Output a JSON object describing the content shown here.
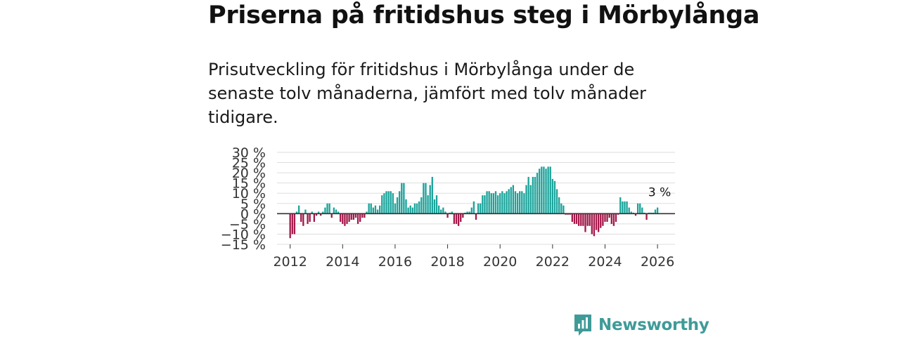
{
  "header": {
    "title": "Priserna på fritidshus steg i Mörbylånga",
    "subtitle": "Prisutveckling för fritidshus i Mörbylånga under de senaste tolv månaderna, jämfört med tolv månader tidigare."
  },
  "brand": {
    "name": "Newsworthy",
    "icon": "newsworthy-logo-icon",
    "color": "#3f9b98"
  },
  "colors": {
    "positive": "#1aa39a",
    "negative": "#a3184a",
    "grid": "#dddddd",
    "zero_line": "#333333"
  },
  "chart_data": {
    "type": "bar",
    "title": "Priserna på fritidshus steg i Mörbylånga",
    "subtitle": "Prisutveckling för fritidshus i Mörbylånga under de senaste tolv månaderna, jämfört med tolv månader tidigare.",
    "xlabel": "",
    "ylabel": "",
    "unit": "%",
    "grid": true,
    "legend": "none",
    "ylim": [
      -15,
      30
    ],
    "xlim": [
      "2011-07",
      "2026-09"
    ],
    "y_ticks": [
      "30 %",
      "25 %",
      "20 %",
      "15 %",
      "10 %",
      "5 %",
      "0 %",
      "−5 %",
      "−10 %",
      "−15 %"
    ],
    "y_tick_values": [
      30,
      25,
      20,
      15,
      10,
      5,
      0,
      -5,
      -10,
      -15
    ],
    "x_ticks": [
      "2012",
      "2014",
      "2016",
      "2018",
      "2020",
      "2022",
      "2024",
      "2026"
    ],
    "annotation": {
      "label": "3 %",
      "at": "2026-01"
    },
    "series": [
      {
        "values": [
          {
            "x": "2012-01",
            "y": -12
          },
          {
            "x": "2012-02",
            "y": -10
          },
          {
            "x": "2012-03",
            "y": -10
          },
          {
            "x": "2012-04",
            "y": 1
          },
          {
            "x": "2012-05",
            "y": 4
          },
          {
            "x": "2012-06",
            "y": -4
          },
          {
            "x": "2012-07",
            "y": -6
          },
          {
            "x": "2012-08",
            "y": 2
          },
          {
            "x": "2012-09",
            "y": -5
          },
          {
            "x": "2012-10",
            "y": -4
          },
          {
            "x": "2012-11",
            "y": 1
          },
          {
            "x": "2012-12",
            "y": -4
          },
          {
            "x": "2013-01",
            "y": -1
          },
          {
            "x": "2013-02",
            "y": 1
          },
          {
            "x": "2013-03",
            "y": -1
          },
          {
            "x": "2013-04",
            "y": 1
          },
          {
            "x": "2013-05",
            "y": 3
          },
          {
            "x": "2013-06",
            "y": 5
          },
          {
            "x": "2013-07",
            "y": 5
          },
          {
            "x": "2013-08",
            "y": -2
          },
          {
            "x": "2013-09",
            "y": 3
          },
          {
            "x": "2013-10",
            "y": 2
          },
          {
            "x": "2013-11",
            "y": 1
          },
          {
            "x": "2013-12",
            "y": -4
          },
          {
            "x": "2014-01",
            "y": -5
          },
          {
            "x": "2014-02",
            "y": -6
          },
          {
            "x": "2014-03",
            "y": -5
          },
          {
            "x": "2014-04",
            "y": -4
          },
          {
            "x": "2014-05",
            "y": -3
          },
          {
            "x": "2014-06",
            "y": -3
          },
          {
            "x": "2014-07",
            "y": -2
          },
          {
            "x": "2014-08",
            "y": -5
          },
          {
            "x": "2014-09",
            "y": -4
          },
          {
            "x": "2014-10",
            "y": -2
          },
          {
            "x": "2014-11",
            "y": -2
          },
          {
            "x": "2014-12",
            "y": 1
          },
          {
            "x": "2015-01",
            "y": 5
          },
          {
            "x": "2015-02",
            "y": 5
          },
          {
            "x": "2015-03",
            "y": 3
          },
          {
            "x": "2015-04",
            "y": 4
          },
          {
            "x": "2015-05",
            "y": 2
          },
          {
            "x": "2015-06",
            "y": 4
          },
          {
            "x": "2015-07",
            "y": 9
          },
          {
            "x": "2015-08",
            "y": 10
          },
          {
            "x": "2015-09",
            "y": 11
          },
          {
            "x": "2015-10",
            "y": 11
          },
          {
            "x": "2015-11",
            "y": 11
          },
          {
            "x": "2015-12",
            "y": 10
          },
          {
            "x": "2016-01",
            "y": 5
          },
          {
            "x": "2016-02",
            "y": 8
          },
          {
            "x": "2016-03",
            "y": 11
          },
          {
            "x": "2016-04",
            "y": 15
          },
          {
            "x": "2016-05",
            "y": 15
          },
          {
            "x": "2016-06",
            "y": 7
          },
          {
            "x": "2016-07",
            "y": 3
          },
          {
            "x": "2016-08",
            "y": 4
          },
          {
            "x": "2016-09",
            "y": 3
          },
          {
            "x": "2016-10",
            "y": 5
          },
          {
            "x": "2016-11",
            "y": 5
          },
          {
            "x": "2016-12",
            "y": 6
          },
          {
            "x": "2017-01",
            "y": 8
          },
          {
            "x": "2017-02",
            "y": 15
          },
          {
            "x": "2017-03",
            "y": 15
          },
          {
            "x": "2017-04",
            "y": 9
          },
          {
            "x": "2017-05",
            "y": 14
          },
          {
            "x": "2017-06",
            "y": 18
          },
          {
            "x": "2017-07",
            "y": 7
          },
          {
            "x": "2017-08",
            "y": 9
          },
          {
            "x": "2017-09",
            "y": 4
          },
          {
            "x": "2017-10",
            "y": 2
          },
          {
            "x": "2017-11",
            "y": 3
          },
          {
            "x": "2017-12",
            "y": 1
          },
          {
            "x": "2018-01",
            "y": -2
          },
          {
            "x": "2018-02",
            "y": 0.5
          },
          {
            "x": "2018-03",
            "y": 1
          },
          {
            "x": "2018-04",
            "y": -5
          },
          {
            "x": "2018-05",
            "y": -5
          },
          {
            "x": "2018-06",
            "y": -6
          },
          {
            "x": "2018-07",
            "y": -4
          },
          {
            "x": "2018-08",
            "y": -2
          },
          {
            "x": "2018-09",
            "y": 0.5
          },
          {
            "x": "2018-10",
            "y": 1
          },
          {
            "x": "2018-11",
            "y": 1
          },
          {
            "x": "2018-12",
            "y": 3
          },
          {
            "x": "2019-01",
            "y": 6
          },
          {
            "x": "2019-02",
            "y": -3
          },
          {
            "x": "2019-03",
            "y": 5
          },
          {
            "x": "2019-04",
            "y": 5
          },
          {
            "x": "2019-05",
            "y": 9
          },
          {
            "x": "2019-06",
            "y": 9
          },
          {
            "x": "2019-07",
            "y": 11
          },
          {
            "x": "2019-08",
            "y": 11
          },
          {
            "x": "2019-09",
            "y": 10
          },
          {
            "x": "2019-10",
            "y": 10
          },
          {
            "x": "2019-11",
            "y": 11
          },
          {
            "x": "2019-12",
            "y": 9
          },
          {
            "x": "2020-01",
            "y": 10
          },
          {
            "x": "2020-02",
            "y": 11
          },
          {
            "x": "2020-03",
            "y": 10
          },
          {
            "x": "2020-04",
            "y": 11
          },
          {
            "x": "2020-05",
            "y": 12
          },
          {
            "x": "2020-06",
            "y": 13
          },
          {
            "x": "2020-07",
            "y": 14
          },
          {
            "x": "2020-08",
            "y": 11
          },
          {
            "x": "2020-09",
            "y": 10
          },
          {
            "x": "2020-10",
            "y": 11
          },
          {
            "x": "2020-11",
            "y": 11
          },
          {
            "x": "2020-12",
            "y": 10
          },
          {
            "x": "2021-01",
            "y": 14
          },
          {
            "x": "2021-02",
            "y": 18
          },
          {
            "x": "2021-03",
            "y": 14
          },
          {
            "x": "2021-04",
            "y": 18
          },
          {
            "x": "2021-05",
            "y": 18
          },
          {
            "x": "2021-06",
            "y": 20
          },
          {
            "x": "2021-07",
            "y": 22
          },
          {
            "x": "2021-08",
            "y": 23
          },
          {
            "x": "2021-09",
            "y": 23
          },
          {
            "x": "2021-10",
            "y": 22
          },
          {
            "x": "2021-11",
            "y": 23
          },
          {
            "x": "2021-12",
            "y": 23
          },
          {
            "x": "2022-01",
            "y": 17
          },
          {
            "x": "2022-02",
            "y": 16
          },
          {
            "x": "2022-03",
            "y": 12
          },
          {
            "x": "2022-04",
            "y": 8
          },
          {
            "x": "2022-05",
            "y": 5
          },
          {
            "x": "2022-06",
            "y": 4
          },
          {
            "x": "2022-07",
            "y": -0.5
          },
          {
            "x": "2022-08",
            "y": -0.5
          },
          {
            "x": "2022-09",
            "y": -0.5
          },
          {
            "x": "2022-10",
            "y": -4
          },
          {
            "x": "2022-11",
            "y": -5
          },
          {
            "x": "2022-12",
            "y": -5
          },
          {
            "x": "2023-01",
            "y": -6
          },
          {
            "x": "2023-02",
            "y": -6
          },
          {
            "x": "2023-03",
            "y": -6
          },
          {
            "x": "2023-04",
            "y": -9
          },
          {
            "x": "2023-05",
            "y": -6
          },
          {
            "x": "2023-06",
            "y": -6
          },
          {
            "x": "2023-07",
            "y": -10
          },
          {
            "x": "2023-08",
            "y": -11
          },
          {
            "x": "2023-09",
            "y": -8
          },
          {
            "x": "2023-10",
            "y": -9
          },
          {
            "x": "2023-11",
            "y": -7
          },
          {
            "x": "2023-12",
            "y": -6
          },
          {
            "x": "2024-01",
            "y": -4
          },
          {
            "x": "2024-02",
            "y": -4
          },
          {
            "x": "2024-03",
            "y": -2
          },
          {
            "x": "2024-04",
            "y": -5
          },
          {
            "x": "2024-05",
            "y": -6
          },
          {
            "x": "2024-06",
            "y": -4
          },
          {
            "x": "2024-07",
            "y": -0.5
          },
          {
            "x": "2024-08",
            "y": 8
          },
          {
            "x": "2024-09",
            "y": 6
          },
          {
            "x": "2024-10",
            "y": 6
          },
          {
            "x": "2024-11",
            "y": 6
          },
          {
            "x": "2024-12",
            "y": 3
          },
          {
            "x": "2025-01",
            "y": 1
          },
          {
            "x": "2025-02",
            "y": 0.5
          },
          {
            "x": "2025-03",
            "y": -1
          },
          {
            "x": "2025-04",
            "y": 5
          },
          {
            "x": "2025-05",
            "y": 5
          },
          {
            "x": "2025-06",
            "y": 3
          },
          {
            "x": "2025-07",
            "y": 0.5
          },
          {
            "x": "2025-08",
            "y": -3
          },
          {
            "x": "2025-09",
            "y": 0.5
          },
          {
            "x": "2025-10",
            "y": 0.5
          },
          {
            "x": "2025-11",
            "y": 0.5
          },
          {
            "x": "2025-12",
            "y": 2
          },
          {
            "x": "2026-01",
            "y": 3
          }
        ]
      }
    ]
  }
}
